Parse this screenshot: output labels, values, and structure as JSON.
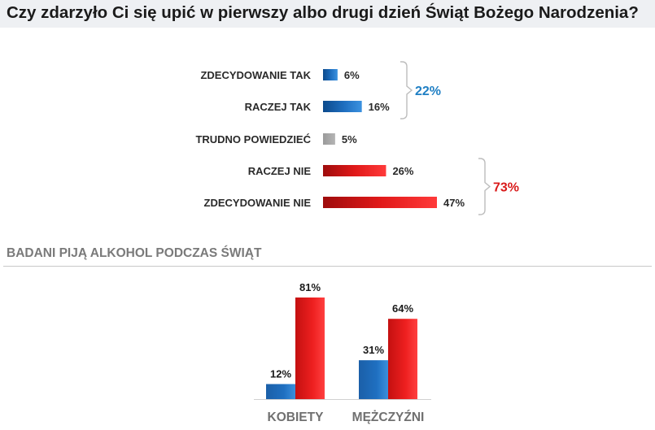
{
  "title": "Czy zdarzyło Ci się upić w pierwszy albo drugi dzień Świąt Bożego Narodzenia?",
  "section_title": "BADANI PIJĄ ALKOHOL PODCZAS ŚWIĄT",
  "colors": {
    "blue": "#1f6fc0",
    "gray": "#a6a6a6",
    "red": "#e81e1e",
    "blue_total": "#1f7fc4",
    "red_total": "#d91a1a"
  },
  "chart_data": [
    {
      "type": "bar",
      "orientation": "horizontal",
      "title": "Czy zdarzyło Ci się upić w pierwszy albo drugi dzień Świąt Bożego Narodzenia?",
      "categories": [
        "ZDECYDOWANIE TAK",
        "RACZEJ TAK",
        "TRUDNO POWIEDZIEĆ",
        "RACZEJ NIE",
        "ZDECYDOWANIE NIE"
      ],
      "values": [
        6,
        16,
        5,
        26,
        47
      ],
      "value_labels": [
        "6%",
        "16%",
        "5%",
        "26%",
        "47%"
      ],
      "bar_colors": [
        "blue",
        "blue",
        "gray",
        "red",
        "red"
      ],
      "groups": [
        {
          "label": "22%",
          "from": 0,
          "to": 1,
          "color": "blue_total"
        },
        {
          "label": "73%",
          "from": 3,
          "to": 4,
          "color": "red_total"
        }
      ],
      "xlim": [
        0,
        47
      ]
    },
    {
      "type": "bar",
      "orientation": "vertical",
      "title": "BADANI PIJĄ ALKOHOL PODCZAS ŚWIĄT",
      "categories": [
        "KOBIETY",
        "MĘŻCZYŹNI"
      ],
      "series": [
        {
          "values": [
            12,
            31
          ],
          "value_labels": [
            "12%",
            "31%"
          ],
          "color": "blue"
        },
        {
          "values": [
            81,
            64
          ],
          "value_labels": [
            "81%",
            "64%"
          ],
          "color": "red"
        }
      ],
      "ylim": [
        0,
        81
      ],
      "legend": "none"
    }
  ]
}
